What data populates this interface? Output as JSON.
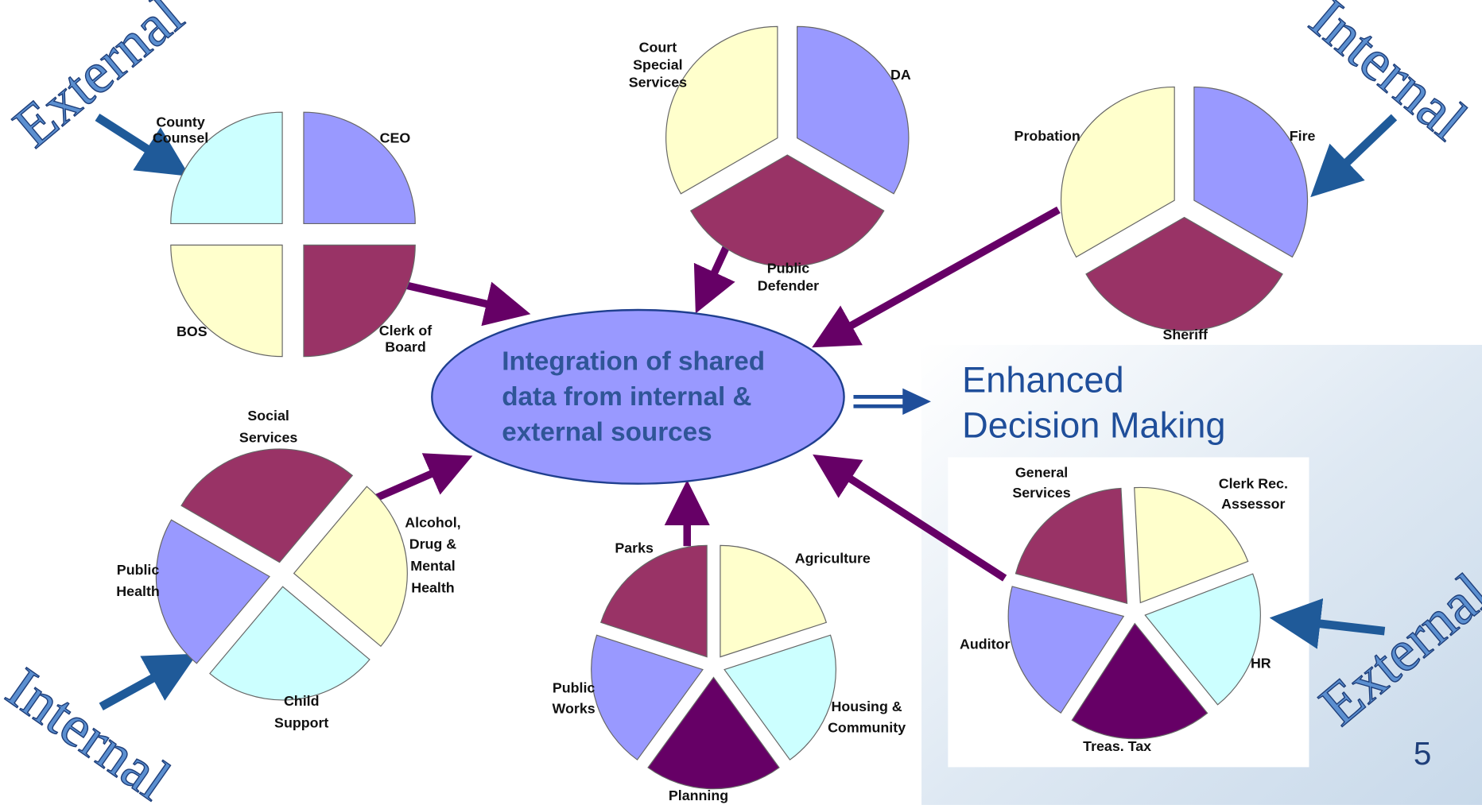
{
  "wordart": [
    "External",
    "Internal",
    "Internal",
    "External"
  ],
  "center": {
    "lines": [
      "Integration of shared",
      "data from internal &",
      "external sources"
    ]
  },
  "outcome": {
    "lines": [
      "Enhanced",
      "Decision Making"
    ]
  },
  "page_number": "5",
  "groups": [
    {
      "slices": [
        {
          "lines": [
            "CEO"
          ]
        },
        {
          "lines": [
            "Clerk of",
            "Board"
          ]
        },
        {
          "lines": [
            "BOS"
          ]
        },
        {
          "lines": [
            "County",
            "Counsel"
          ]
        }
      ]
    },
    {
      "slices": [
        {
          "lines": [
            "DA"
          ]
        },
        {
          "lines": [
            "Public",
            "Defender"
          ]
        },
        {
          "lines": [
            "Court",
            "Special",
            "Services"
          ]
        }
      ]
    },
    {
      "slices": [
        {
          "lines": [
            "Fire"
          ]
        },
        {
          "lines": [
            "Sheriff"
          ]
        },
        {
          "lines": [
            "Probation"
          ]
        }
      ]
    },
    {
      "slices": [
        {
          "lines": [
            "Social",
            "Services"
          ]
        },
        {
          "lines": [
            "Alcohol,",
            "Drug &",
            "Mental",
            "Health"
          ]
        },
        {
          "lines": [
            "Child",
            "Support"
          ]
        },
        {
          "lines": [
            "Public",
            "Health"
          ]
        }
      ]
    },
    {
      "slices": [
        {
          "lines": [
            "Parks"
          ]
        },
        {
          "lines": [
            "Agriculture"
          ]
        },
        {
          "lines": [
            "Housing &",
            "Community"
          ]
        },
        {
          "lines": [
            "Planning"
          ]
        },
        {
          "lines": [
            "Public",
            "Works"
          ]
        }
      ]
    },
    {
      "slices": [
        {
          "lines": [
            "General",
            "Services"
          ]
        },
        {
          "lines": [
            "Clerk Rec.",
            "Assessor"
          ]
        },
        {
          "lines": [
            "HR"
          ]
        },
        {
          "lines": [
            "Treas. Tax"
          ]
        },
        {
          "lines": [
            "Auditor"
          ]
        }
      ]
    }
  ]
}
